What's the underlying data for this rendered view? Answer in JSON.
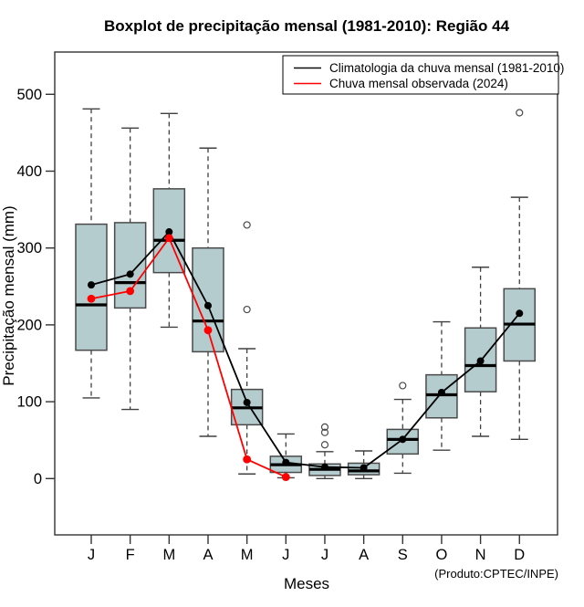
{
  "figure": {
    "background": "#ffffff"
  },
  "chart_data": {
    "type": "boxplot",
    "title": "Boxplot de precipitação mensal (1981-2010): Região 44",
    "xlabel": "Meses",
    "ylabel": "Precipitação mensal (mm)",
    "annotation": "(Produto:CPTEC/INPE)",
    "categories": [
      "J",
      "F",
      "M",
      "A",
      "M",
      "J",
      "J",
      "A",
      "S",
      "O",
      "N",
      "D"
    ],
    "yticks": [
      0,
      100,
      200,
      300,
      400,
      500
    ],
    "ylim": [
      -20,
      560
    ],
    "legend_position": "top-right",
    "grid": false,
    "boxes": [
      {
        "month": "J",
        "whisker_low": 105,
        "q1": 167,
        "median": 226,
        "q3": 331,
        "whisker_high": 481,
        "outliers": []
      },
      {
        "month": "F",
        "whisker_low": 90,
        "q1": 222,
        "median": 255,
        "q3": 333,
        "whisker_high": 456,
        "outliers": []
      },
      {
        "month": "M",
        "whisker_low": 197,
        "q1": 268,
        "median": 310,
        "q3": 377,
        "whisker_high": 475,
        "outliers": []
      },
      {
        "month": "A",
        "whisker_low": 55,
        "q1": 165,
        "median": 205,
        "q3": 300,
        "whisker_high": 430,
        "outliers": []
      },
      {
        "month": "M",
        "whisker_low": 6,
        "q1": 70,
        "median": 92,
        "q3": 116,
        "whisker_high": 169,
        "outliers": [
          220,
          330
        ]
      },
      {
        "month": "J",
        "whisker_low": 1,
        "q1": 8,
        "median": 18,
        "q3": 29,
        "whisker_high": 58,
        "outliers": []
      },
      {
        "month": "J",
        "whisker_low": 0,
        "q1": 4,
        "median": 12,
        "q3": 19,
        "whisker_high": 35,
        "outliers": [
          44,
          60,
          67
        ]
      },
      {
        "month": "A",
        "whisker_low": 0,
        "q1": 5,
        "median": 10,
        "q3": 20,
        "whisker_high": 36,
        "outliers": []
      },
      {
        "month": "S",
        "whisker_low": 7,
        "q1": 32,
        "median": 51,
        "q3": 64,
        "whisker_high": 103,
        "outliers": [
          121
        ]
      },
      {
        "month": "O",
        "whisker_low": 37,
        "q1": 79,
        "median": 109,
        "q3": 135,
        "whisker_high": 204,
        "outliers": []
      },
      {
        "month": "N",
        "whisker_low": 55,
        "q1": 113,
        "median": 147,
        "q3": 196,
        "whisker_high": 275,
        "outliers": []
      },
      {
        "month": "D",
        "whisker_low": 51,
        "q1": 153,
        "median": 201,
        "q3": 247,
        "whisker_high": 366,
        "outliers": [
          476
        ]
      }
    ],
    "series": [
      {
        "name": "Climatologia da chuva mensal (1981-2010)",
        "color": "#000000",
        "values": [
          252,
          266,
          321,
          225,
          99,
          21,
          15,
          14,
          51,
          112,
          153,
          215
        ]
      },
      {
        "name": "Chuva mensal observada (2024)",
        "color": "#ff0000",
        "values": [
          234,
          244,
          313,
          193,
          25,
          2,
          null,
          null,
          null,
          null,
          null,
          null
        ]
      }
    ],
    "colors": {
      "box_fill": "#b5cccf",
      "box_border": "#4a4a4a",
      "whisker": "#404040",
      "median": "#000000",
      "outlier": "#4a4a4a",
      "frame": "#333333",
      "climatology_line": "#0d0d0d",
      "observed_line": "#ff0000"
    }
  }
}
